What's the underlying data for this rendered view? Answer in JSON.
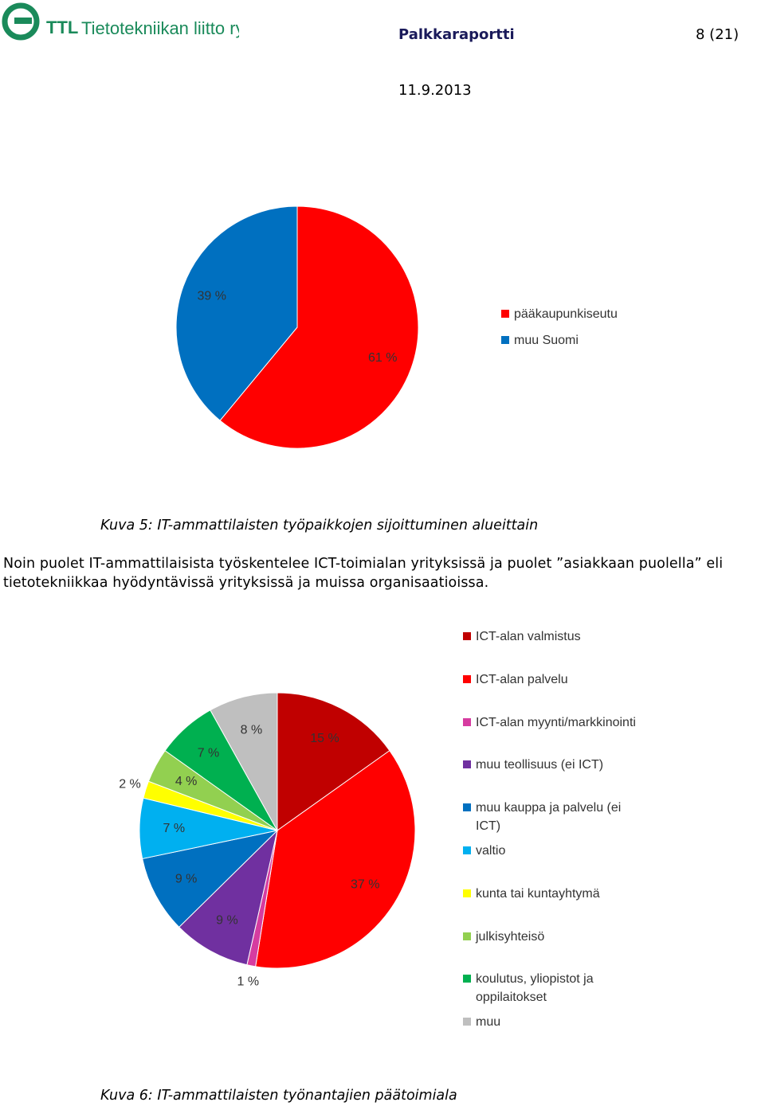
{
  "header": {
    "logo_abbr": "TTL",
    "logo_name": "Tietotekniikan liitto ry",
    "title": "Palkkaraportti",
    "page": "8 (21)",
    "date": "11.9.2013"
  },
  "chart_data": [
    {
      "type": "pie",
      "categories": [
        "pääkaupunkiseutu",
        "muu Suomi"
      ],
      "values": [
        61,
        39
      ],
      "value_labels": [
        "61 %",
        "39 %"
      ],
      "colors": [
        "#ff0000",
        "#0070c0"
      ]
    },
    {
      "type": "pie",
      "categories": [
        "ICT-alan valmistus",
        "ICT-alan palvelu",
        "ICT-alan myynti/markkinointi",
        "muu teollisuus (ei ICT)",
        "muu kauppa ja palvelu (ei ICT)",
        "valtio",
        "kunta tai kuntayhtymä",
        "julkisyhteisö",
        "koulutus, yliopistot ja oppilaitokset",
        "muu"
      ],
      "values": [
        15,
        37,
        1,
        9,
        9,
        7,
        2,
        4,
        7,
        8
      ],
      "value_labels": [
        "15 %",
        "37 %",
        "1 %",
        "9 %",
        "9 %",
        "7 %",
        "2 %",
        "4 %",
        "7 %",
        "8 %"
      ],
      "colors": [
        "#c00000",
        "#ff0000",
        "#d63ca0",
        "#7030a0",
        "#0070c0",
        "#00b0f0",
        "#ffff00",
        "#92d050",
        "#00b050",
        "#bfbfbf"
      ]
    }
  ],
  "caption1": "Kuva 5: IT-ammattilaisten työpaikkojen sijoittuminen alueittain",
  "paragraph": "Noin puolet IT-ammattilaisista työskentelee ICT-toimialan yrityksissä ja puolet ”asiakkaan puolella” eli tietotekniikkaa hyödyntävissä yrityksissä ja muissa organisaatioissa.",
  "caption2": "Kuva 6: IT-ammattilaisten työnantajien päätoimiala"
}
